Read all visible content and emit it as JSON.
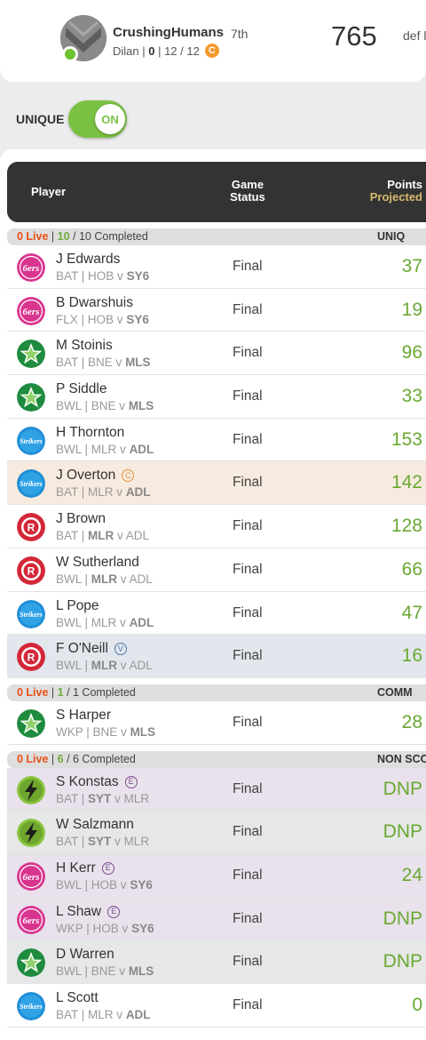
{
  "header": {
    "username": "CrushingHumans",
    "rank": "7th",
    "owner": "Dilan",
    "stat_live": "0",
    "stat_sep1": "12",
    "stat_sep2": "12",
    "captain_badge": "C",
    "total_points": "765",
    "opponent": "def l"
  },
  "unique_toggle": {
    "label": "UNIQUE",
    "state": "ON"
  },
  "table": {
    "col_player": "Player",
    "col_status_line1": "Game",
    "col_status_line2": "Status",
    "col_points_line1": "Points",
    "col_points_line2": "Projected"
  },
  "groups": [
    {
      "live": "0 Live",
      "completed": "10",
      "total_text": " / 10 Completed",
      "name": "UNIQ",
      "players": [
        {
          "name": "J Edwards",
          "role": "BAT",
          "team": "HOB",
          "opp": "SY6",
          "bold": "opp",
          "status": "Final",
          "points": "37",
          "icon": "sixers-icon",
          "style": "",
          "badge": ""
        },
        {
          "name": "B Dwarshuis",
          "role": "FLX",
          "team": "HOB",
          "opp": "SY6",
          "bold": "opp",
          "status": "Final",
          "points": "19",
          "icon": "sixers-icon",
          "style": "",
          "badge": ""
        },
        {
          "name": "M Stoinis",
          "role": "BAT",
          "team": "BNE",
          "opp": "MLS",
          "bold": "opp",
          "status": "Final",
          "points": "96",
          "icon": "stars-icon",
          "style": "",
          "badge": ""
        },
        {
          "name": "P Siddle",
          "role": "BWL",
          "team": "BNE",
          "opp": "MLS",
          "bold": "opp",
          "status": "Final",
          "points": "33",
          "icon": "stars-icon",
          "style": "",
          "badge": ""
        },
        {
          "name": "H Thornton",
          "role": "BWL",
          "team": "MLR",
          "opp": "ADL",
          "bold": "opp",
          "status": "Final",
          "points": "153",
          "icon": "strikers-icon",
          "style": "",
          "badge": ""
        },
        {
          "name": "J Overton",
          "role": "BAT",
          "team": "MLR",
          "opp": "ADL",
          "bold": "opp",
          "status": "Final",
          "points": "142",
          "icon": "strikers-icon",
          "style": "captain",
          "badge": "C"
        },
        {
          "name": "J Brown",
          "role": "BAT",
          "team": "MLR",
          "opp": "ADL",
          "bold": "team",
          "status": "Final",
          "points": "128",
          "icon": "renegades-icon",
          "style": "",
          "badge": ""
        },
        {
          "name": "W Sutherland",
          "role": "BWL",
          "team": "MLR",
          "opp": "ADL",
          "bold": "team",
          "status": "Final",
          "points": "66",
          "icon": "renegades-icon",
          "style": "",
          "badge": ""
        },
        {
          "name": "L Pope",
          "role": "BWL",
          "team": "MLR",
          "opp": "ADL",
          "bold": "opp",
          "status": "Final",
          "points": "47",
          "icon": "strikers-icon",
          "style": "",
          "badge": ""
        },
        {
          "name": "F O'Neill",
          "role": "BWL",
          "team": "MLR",
          "opp": "ADL",
          "bold": "team",
          "status": "Final",
          "points": "16",
          "icon": "renegades-icon",
          "style": "vice",
          "badge": "V"
        }
      ]
    },
    {
      "live": "0 Live",
      "completed": "1",
      "total_text": " / 1 Completed",
      "name": "COMM",
      "players": [
        {
          "name": "S Harper",
          "role": "WKP",
          "team": "BNE",
          "opp": "MLS",
          "bold": "opp",
          "status": "Final",
          "points": "28",
          "icon": "stars-icon",
          "style": "",
          "badge": ""
        }
      ]
    },
    {
      "live": "0 Live",
      "completed": "6",
      "total_text": " / 6 Completed",
      "name": "NON SCO",
      "players": [
        {
          "name": "S Konstas",
          "role": "BAT",
          "team": "SYT",
          "opp": "MLR",
          "bold": "team",
          "status": "Final",
          "points": "DNP",
          "icon": "thunder-icon",
          "style": "emerg",
          "badge": "E"
        },
        {
          "name": "W Salzmann",
          "role": "BAT",
          "team": "SYT",
          "opp": "MLR",
          "bold": "team",
          "status": "Final",
          "points": "DNP",
          "icon": "thunder-icon",
          "style": "emerg-alt",
          "badge": ""
        },
        {
          "name": "H Kerr",
          "role": "BWL",
          "team": "HOB",
          "opp": "SY6",
          "bold": "opp",
          "status": "Final",
          "points": "24",
          "icon": "sixers-icon",
          "style": "emerg",
          "badge": "E"
        },
        {
          "name": "L Shaw",
          "role": "WKP",
          "team": "HOB",
          "opp": "SY6",
          "bold": "opp",
          "status": "Final",
          "points": "DNP",
          "icon": "sixers-icon",
          "style": "emerg",
          "badge": "E"
        },
        {
          "name": "D Warren",
          "role": "BWL",
          "team": "BNE",
          "opp": "MLS",
          "bold": "opp",
          "status": "Final",
          "points": "DNP",
          "icon": "stars-icon",
          "style": "emerg-alt",
          "badge": ""
        },
        {
          "name": "L Scott",
          "role": "BAT",
          "team": "MLR",
          "opp": "ADL",
          "bold": "opp",
          "status": "Final",
          "points": "0",
          "icon": "strikers-icon",
          "style": "",
          "badge": ""
        }
      ]
    }
  ],
  "colors": {
    "accent_green": "#7ac143",
    "live_orange": "#e8501a",
    "points_green": "#6aa832",
    "header_dark": "#333333",
    "projected_gold": "#d9b970",
    "captain_row": "#f7ebdf",
    "vice_row": "#e2e7ed",
    "emergency_row": "#e9e2ec"
  }
}
